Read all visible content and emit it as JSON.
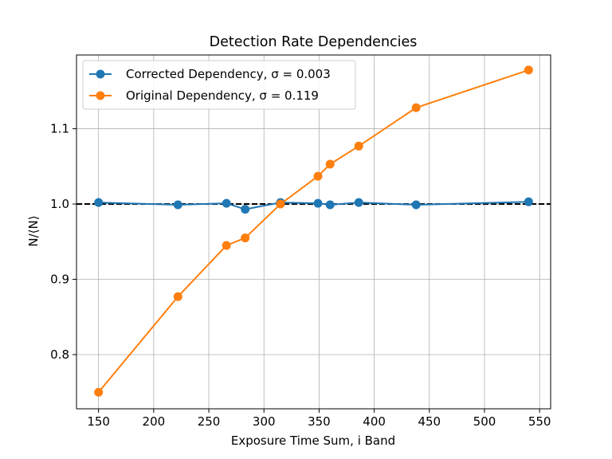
{
  "chart_data": {
    "type": "line",
    "title": "Detection Rate Dependencies",
    "xlabel": "Exposure Time Sum, i Band",
    "ylabel": "N/⟨N⟩",
    "xlim": [
      130,
      560
    ],
    "ylim": [
      0.728,
      1.198
    ],
    "x_ticks": [
      150,
      200,
      250,
      300,
      350,
      400,
      450,
      500,
      550
    ],
    "y_ticks": [
      0.8,
      0.9,
      1.0,
      1.1
    ],
    "y_tick_labels": [
      "0.8",
      "0.9",
      "1.0",
      "1.1"
    ],
    "grid": true,
    "legend_position": "top-left",
    "reference_line": {
      "y": 1.0,
      "style": "dashed",
      "color": "#000000"
    },
    "series": [
      {
        "name": "Corrected Dependency, σ = 0.003",
        "color": "#1f77b4",
        "x": [
          150,
          222,
          266,
          283,
          315,
          349,
          360,
          386,
          438,
          540
        ],
        "y": [
          1.002,
          0.999,
          1.001,
          0.993,
          1.002,
          1.001,
          0.999,
          1.002,
          0.999,
          1.003
        ]
      },
      {
        "name": "Original Dependency, σ = 0.119",
        "color": "#ff7f0e",
        "x": [
          150,
          222,
          266,
          283,
          315,
          349,
          360,
          386,
          438,
          540
        ],
        "y": [
          0.75,
          0.877,
          0.945,
          0.955,
          1.0,
          1.037,
          1.053,
          1.077,
          1.128,
          1.178
        ]
      }
    ]
  }
}
